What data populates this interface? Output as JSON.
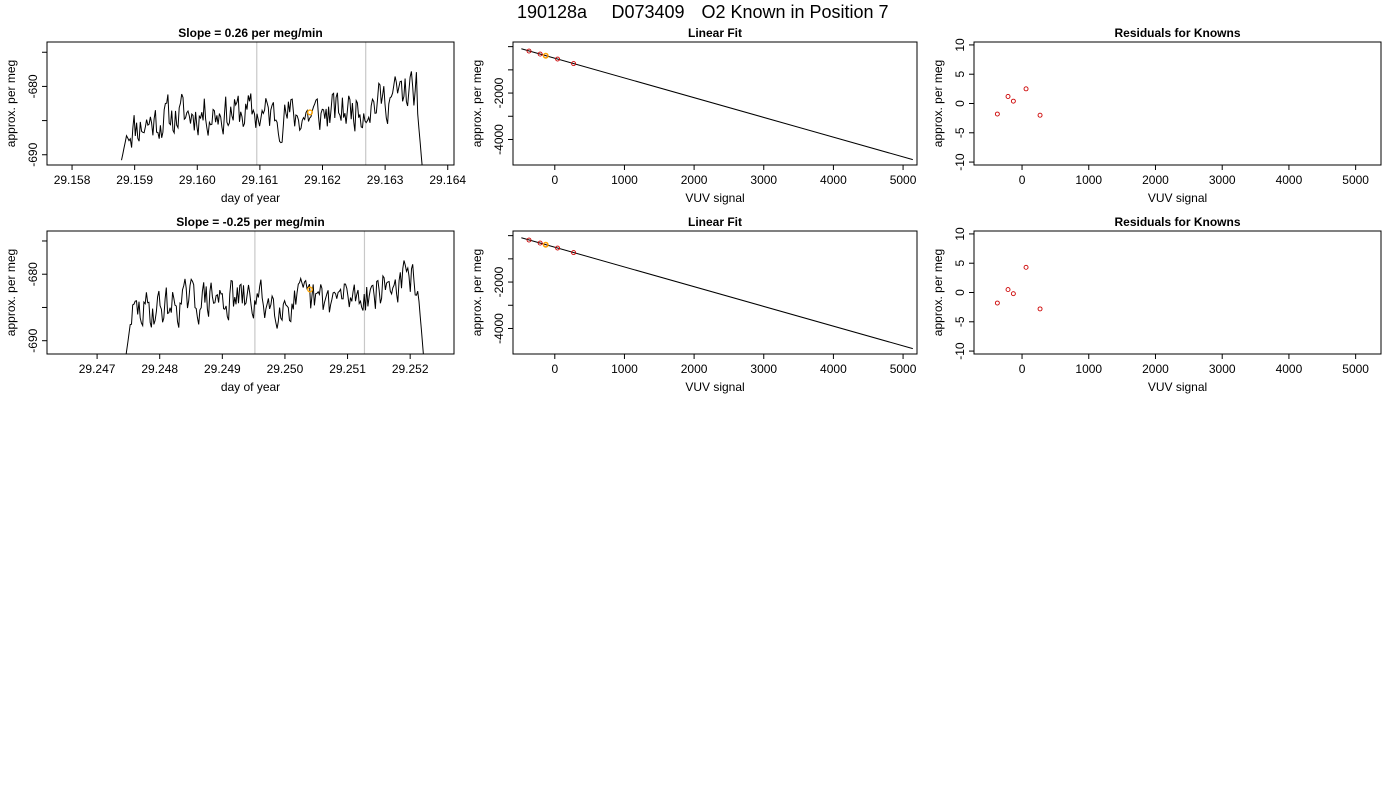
{
  "page": {
    "suptitle_parts": [
      "190128a",
      "D073409",
      "O2 Known in Position  7"
    ],
    "colors": {
      "line": "#000000",
      "marker": "#cc0000",
      "highlight": "#ffa500",
      "vline": "#c8c8c8",
      "frame": "#000000"
    }
  },
  "chart_data": [
    {
      "id": "trace-1",
      "type": "line",
      "title": "Slope =  0.26  per meg/min",
      "xlabel": "day of year",
      "ylabel": "approx. per meg",
      "xlim": [
        29.1576,
        29.1641
      ],
      "ylim": [
        -691.5,
        -673.5
      ],
      "xticks": [
        29.158,
        29.159,
        29.16,
        29.161,
        29.162,
        29.163,
        29.164
      ],
      "xtick_labels": [
        "29.158",
        "29.159",
        "29.160",
        "29.161",
        "29.162",
        "29.163",
        "29.164"
      ],
      "yticks": [
        -690,
        -680
      ],
      "ytick_labels": [
        "-690",
        "-680"
      ],
      "yticks_minor": [
        -675,
        -685
      ],
      "vlines": [
        29.16095,
        29.16269
      ],
      "series": [
        {
          "x0": 29.15879,
          "x1": 29.1636,
          "start": -690.8,
          "end": -692.5,
          "level": -683.3,
          "seed": 11
        }
      ],
      "highlight_points": [
        [
          29.1618,
          -683.8
        ]
      ]
    },
    {
      "id": "fit-1",
      "type": "scatter",
      "title": "Linear Fit",
      "xlabel": "VUV signal",
      "ylabel": "approx. per meg",
      "xlim": [
        -600,
        5200
      ],
      "ylim": [
        -5100,
        200
      ],
      "xticks": [
        0,
        1000,
        2000,
        3000,
        4000,
        5000
      ],
      "xtick_labels": [
        "0",
        "1000",
        "2000",
        "3000",
        "4000",
        "5000"
      ],
      "yticks": [
        -4000,
        -2000
      ],
      "ytick_labels": [
        "-4000",
        "-2000"
      ],
      "yticks_minor": [
        -3000,
        -1000,
        0
      ],
      "fit_line": [
        [
          -480,
          -90
        ],
        [
          5140,
          -4870
        ]
      ],
      "points": [
        [
          -370,
          -190
        ],
        [
          -210,
          -320
        ],
        [
          -130,
          -390
        ],
        [
          40,
          -535
        ],
        [
          270,
          -730
        ]
      ],
      "highlight_points": [
        [
          -130,
          -390
        ]
      ]
    },
    {
      "id": "resid-1",
      "type": "scatter",
      "title": "Residuals for Knowns",
      "xlabel": "VUV signal",
      "ylabel": "approx. per meg",
      "xlim": [
        -720,
        5380
      ],
      "ylim": [
        -10.5,
        10.5
      ],
      "xticks": [
        0,
        1000,
        2000,
        3000,
        4000,
        5000
      ],
      "xtick_labels": [
        "0",
        "1000",
        "2000",
        "3000",
        "4000",
        "5000"
      ],
      "yticks": [
        -10,
        -5,
        0,
        5,
        10
      ],
      "ytick_labels": [
        "-10",
        "-5",
        "0",
        "5",
        "10"
      ],
      "points": [
        [
          -370,
          -1.8
        ],
        [
          -210,
          1.2
        ],
        [
          -130,
          0.4
        ],
        [
          60,
          2.5
        ],
        [
          270,
          -2.0
        ]
      ]
    },
    {
      "id": "trace-2",
      "type": "line",
      "title": "Slope =  -0.25  per meg/min",
      "xlabel": "day of year",
      "ylabel": "approx. per meg",
      "xlim": [
        29.2462,
        29.2527
      ],
      "ylim": [
        -692,
        -673.5
      ],
      "xticks": [
        29.247,
        29.248,
        29.249,
        29.25,
        29.251,
        29.252
      ],
      "xtick_labels": [
        "29.247",
        "29.248",
        "29.249",
        "29.250",
        "29.251",
        "29.252"
      ],
      "yticks": [
        -690,
        -680
      ],
      "ytick_labels": [
        "-690",
        "-680"
      ],
      "yticks_minor": [
        -675,
        -685
      ],
      "vlines": [
        29.24952,
        29.25127
      ],
      "series": [
        {
          "x0": 29.24745,
          "x1": 29.25222,
          "start": -693,
          "end": -693,
          "level": -683.3,
          "seed": 29
        }
      ],
      "highlight_points": [
        [
          29.2504,
          -682.3
        ]
      ]
    },
    {
      "id": "fit-2",
      "type": "scatter",
      "title": "Linear Fit",
      "xlabel": "VUV signal",
      "ylabel": "approx. per meg",
      "xlim": [
        -600,
        5200
      ],
      "ylim": [
        -5100,
        200
      ],
      "xticks": [
        0,
        1000,
        2000,
        3000,
        4000,
        5000
      ],
      "xtick_labels": [
        "0",
        "1000",
        "2000",
        "3000",
        "4000",
        "5000"
      ],
      "yticks": [
        -4000,
        -2000
      ],
      "ytick_labels": [
        "-4000",
        "-2000"
      ],
      "yticks_minor": [
        -3000,
        -1000,
        0
      ],
      "fit_line": [
        [
          -480,
          -90
        ],
        [
          5140,
          -4870
        ]
      ],
      "points": [
        [
          -370,
          -190
        ],
        [
          -210,
          -320
        ],
        [
          -130,
          -390
        ],
        [
          40,
          -535
        ],
        [
          270,
          -730
        ]
      ],
      "highlight_points": [
        [
          -130,
          -390
        ]
      ]
    },
    {
      "id": "resid-2",
      "type": "scatter",
      "title": "Residuals for Knowns",
      "xlabel": "VUV signal",
      "ylabel": "approx. per meg",
      "xlim": [
        -720,
        5380
      ],
      "ylim": [
        -10.5,
        10.5
      ],
      "xticks": [
        0,
        1000,
        2000,
        3000,
        4000,
        5000
      ],
      "xtick_labels": [
        "0",
        "1000",
        "2000",
        "3000",
        "4000",
        "5000"
      ],
      "yticks": [
        -10,
        -5,
        0,
        5,
        10
      ],
      "ytick_labels": [
        "-10",
        "-5",
        "0",
        "5",
        "10"
      ],
      "points": [
        [
          -370,
          -1.8
        ],
        [
          -210,
          0.5
        ],
        [
          -130,
          -0.2
        ],
        [
          60,
          4.3
        ],
        [
          270,
          -2.8
        ]
      ]
    }
  ]
}
